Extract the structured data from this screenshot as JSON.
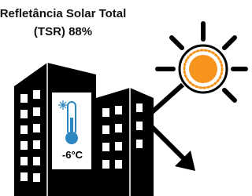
{
  "header": {
    "title_line1": "Refletância Solar Total",
    "title_line2": "(TSR) 88%"
  },
  "thermometer": {
    "label": "-6°C"
  }
}
